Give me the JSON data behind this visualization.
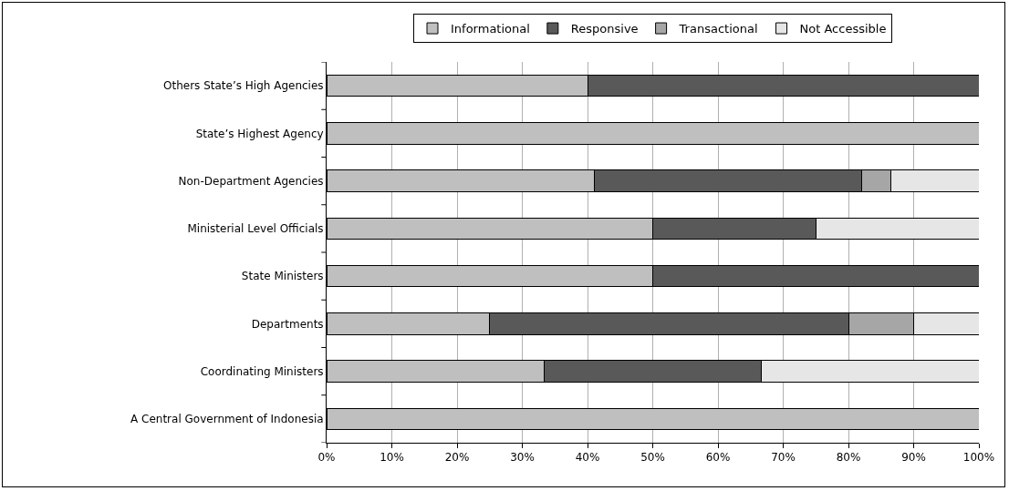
{
  "chart_data": {
    "type": "bar",
    "orientation": "horizontal",
    "stacked": true,
    "categories": [
      "Others State’s High Agencies",
      "State’s Highest Agency",
      "Non-Department Agencies",
      "Ministerial Level Officials",
      "State Ministers",
      "Departments",
      "Coordinating Ministers",
      "A Central Government of Indonesia"
    ],
    "series": [
      {
        "name": "Informational",
        "color": "#bfbfbf",
        "values": [
          40,
          100,
          41,
          50,
          50,
          25,
          33.3,
          100
        ]
      },
      {
        "name": "Responsive",
        "color": "#595959",
        "values": [
          60,
          null,
          41,
          25,
          50,
          55,
          33.3,
          null
        ]
      },
      {
        "name": "Transactional",
        "color": "#a6a6a6",
        "values": [
          null,
          null,
          4.5,
          null,
          null,
          10,
          null,
          null
        ]
      },
      {
        "name": "Not Accessible",
        "color": "#e6e6e6",
        "values": [
          null,
          null,
          13.5,
          25,
          null,
          10,
          33.4,
          null
        ]
      }
    ],
    "xlim": [
      0,
      100
    ],
    "xticks": [
      {
        "value": 0,
        "label": "0%"
      },
      {
        "value": 10,
        "label": "10%"
      },
      {
        "value": 20,
        "label": "20%"
      },
      {
        "value": 30,
        "label": "30%"
      },
      {
        "value": 40,
        "label": "40%"
      },
      {
        "value": 50,
        "label": "50%"
      },
      {
        "value": 60,
        "label": "60%"
      },
      {
        "value": 70,
        "label": "70%"
      },
      {
        "value": 80,
        "label": "80%"
      },
      {
        "value": 90,
        "label": "90%"
      },
      {
        "value": 100,
        "label": "100%"
      }
    ],
    "grid": "x",
    "legend": "top"
  }
}
